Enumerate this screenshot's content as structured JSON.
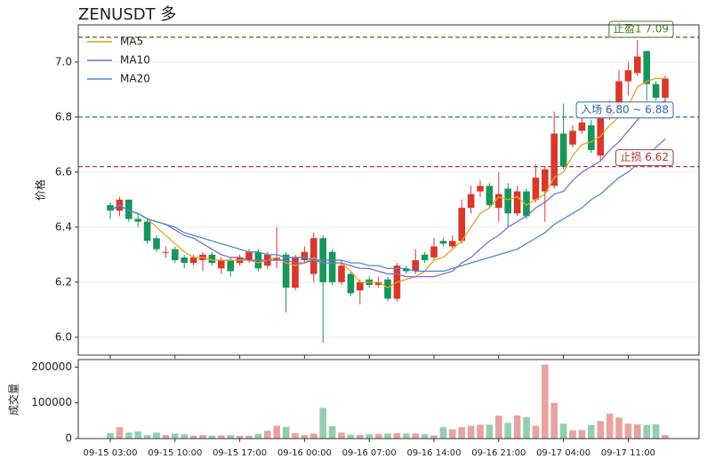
{
  "chart_data": [
    {
      "type": "candlestick",
      "title": "ZENUSDT  多",
      "ylabel": "价格",
      "categories": [
        "09-15 03:00",
        null,
        null,
        null,
        null,
        null,
        null,
        "09-15 10:00",
        null,
        null,
        null,
        null,
        null,
        null,
        "09-15 17:00",
        null,
        null,
        null,
        null,
        null,
        null,
        "09-16 00:00",
        null,
        null,
        null,
        null,
        null,
        null,
        "09-16 07:00",
        null,
        null,
        null,
        null,
        null,
        null,
        "09-16 14:00",
        null,
        null,
        null,
        null,
        null,
        null,
        "09-16 21:00",
        null,
        null,
        null,
        null,
        null,
        null,
        "09-17 04:00",
        null,
        null,
        null,
        null,
        null,
        null,
        "09-17 11:00",
        null,
        null,
        null,
        null
      ],
      "open": [
        6.48,
        6.46,
        6.5,
        6.43,
        6.42,
        6.36,
        6.31,
        6.32,
        6.29,
        6.27,
        6.28,
        6.3,
        6.25,
        6.28,
        6.27,
        6.28,
        6.31,
        6.26,
        6.28,
        6.3,
        6.18,
        6.28,
        6.23,
        6.36,
        6.31,
        6.2,
        6.23,
        6.17,
        6.21,
        6.19,
        6.21,
        6.14,
        6.25,
        6.24,
        6.3,
        6.29,
        6.35,
        6.33,
        6.35,
        6.47,
        6.53,
        6.55,
        6.47,
        6.54,
        6.45,
        6.53,
        6.5,
        6.53,
        6.55,
        6.74,
        6.7,
        6.75,
        6.77,
        6.66,
        6.8,
        6.83,
        6.93,
        6.96,
        7.04,
        6.92,
        6.87
      ],
      "high": [
        6.49,
        6.51,
        6.5,
        6.45,
        6.43,
        6.37,
        6.33,
        6.33,
        6.3,
        6.3,
        6.31,
        6.31,
        6.29,
        6.29,
        6.3,
        6.32,
        6.32,
        6.31,
        6.4,
        6.31,
        6.3,
        6.33,
        6.38,
        6.37,
        6.32,
        6.28,
        6.24,
        6.21,
        6.22,
        6.22,
        6.22,
        6.27,
        6.26,
        6.32,
        6.31,
        6.36,
        6.36,
        6.37,
        6.5,
        6.55,
        6.57,
        6.56,
        6.6,
        6.56,
        6.55,
        6.54,
        6.63,
        6.62,
        6.82,
        6.85,
        6.77,
        6.8,
        6.79,
        6.85,
        6.86,
        6.97,
        7.0,
        7.08,
        7.04,
        6.93,
        6.95
      ],
      "low": [
        6.43,
        6.44,
        6.42,
        6.4,
        6.34,
        6.31,
        6.29,
        6.27,
        6.25,
        6.26,
        6.24,
        6.26,
        6.23,
        6.22,
        6.26,
        6.27,
        6.24,
        6.25,
        6.25,
        6.09,
        6.17,
        6.27,
        6.2,
        5.98,
        6.19,
        6.19,
        6.15,
        6.12,
        6.18,
        6.18,
        6.13,
        6.13,
        6.23,
        6.23,
        6.27,
        6.28,
        6.33,
        6.32,
        6.34,
        6.45,
        6.51,
        6.47,
        6.42,
        6.4,
        6.44,
        6.43,
        6.49,
        6.42,
        6.54,
        6.61,
        6.69,
        6.74,
        6.67,
        6.64,
        6.79,
        6.82,
        6.88,
        6.95,
        6.86,
        6.86,
        6.85
      ],
      "close": [
        6.46,
        6.5,
        6.43,
        6.42,
        6.35,
        6.32,
        6.31,
        6.28,
        6.27,
        6.29,
        6.3,
        6.27,
        6.28,
        6.24,
        6.29,
        6.31,
        6.25,
        6.3,
        6.29,
        6.18,
        6.29,
        6.31,
        6.36,
        6.2,
        6.2,
        6.26,
        6.16,
        6.2,
        6.19,
        6.2,
        6.14,
        6.26,
        6.24,
        6.28,
        6.28,
        6.33,
        6.34,
        6.35,
        6.47,
        6.52,
        6.55,
        6.48,
        6.52,
        6.45,
        6.53,
        6.44,
        6.58,
        6.61,
        6.74,
        6.62,
        6.75,
        6.78,
        6.68,
        6.8,
        6.83,
        6.93,
        6.97,
        7.02,
        6.92,
        6.87,
        6.94
      ],
      "up_color": "#d8372a",
      "down_color": "#17955a",
      "series": [
        {
          "name": "MA5",
          "color": "#e3a417",
          "values": [
            6.46,
            6.48,
            6.46,
            6.45,
            6.43,
            6.4,
            6.37,
            6.34,
            6.31,
            6.29,
            6.29,
            6.28,
            6.28,
            6.28,
            6.28,
            6.28,
            6.27,
            6.28,
            6.29,
            6.27,
            6.26,
            6.27,
            6.29,
            6.27,
            6.27,
            6.27,
            6.24,
            6.2,
            6.2,
            6.2,
            6.18,
            6.2,
            6.21,
            6.22,
            6.24,
            6.28,
            6.29,
            6.32,
            6.35,
            6.4,
            6.45,
            6.47,
            6.51,
            6.5,
            6.51,
            6.48,
            6.5,
            6.52,
            6.58,
            6.6,
            6.66,
            6.7,
            6.71,
            6.73,
            6.77,
            6.8,
            6.84,
            6.91,
            6.93,
            6.94,
            6.94
          ]
        },
        {
          "name": "MA10",
          "color": "#8a68cc",
          "values": [
            6.46,
            6.48,
            6.46,
            6.45,
            6.43,
            6.42,
            6.41,
            6.39,
            6.37,
            6.36,
            6.34,
            6.32,
            6.3,
            6.29,
            6.29,
            6.28,
            6.28,
            6.28,
            6.28,
            6.28,
            6.27,
            6.27,
            6.28,
            6.27,
            6.27,
            6.27,
            6.26,
            6.25,
            6.25,
            6.24,
            6.23,
            6.23,
            6.22,
            6.22,
            6.22,
            6.22,
            6.23,
            6.24,
            6.27,
            6.29,
            6.32,
            6.35,
            6.37,
            6.4,
            6.42,
            6.44,
            6.47,
            6.49,
            6.52,
            6.53,
            6.57,
            6.6,
            6.62,
            6.64,
            6.68,
            6.71,
            6.75,
            6.79,
            6.82,
            6.84,
            6.86
          ]
        },
        {
          "name": "MA20",
          "color": "#4a8ad2",
          "values": [
            6.46,
            6.48,
            6.46,
            6.45,
            6.43,
            6.42,
            6.41,
            6.4,
            6.38,
            6.37,
            6.36,
            6.35,
            6.34,
            6.33,
            6.32,
            6.31,
            6.31,
            6.3,
            6.3,
            6.29,
            6.29,
            6.29,
            6.28,
            6.28,
            6.28,
            6.28,
            6.27,
            6.27,
            6.26,
            6.26,
            6.25,
            6.25,
            6.25,
            6.24,
            6.24,
            6.24,
            6.24,
            6.25,
            6.26,
            6.27,
            6.28,
            6.29,
            6.3,
            6.31,
            6.32,
            6.34,
            6.36,
            6.38,
            6.41,
            6.43,
            6.45,
            6.47,
            6.5,
            6.52,
            6.55,
            6.58,
            6.6,
            6.63,
            6.66,
            6.69,
            6.72
          ]
        }
      ],
      "hlines": [
        {
          "label": "止盈1 7.09",
          "value": 7.09,
          "color": "#4c7d28"
        },
        {
          "label": "入场 6.80 ~ 6.88",
          "value": 6.8,
          "color": "#2d6bb0"
        },
        {
          "label": "止损 6.62",
          "value": 6.62,
          "color": "#a83a3a"
        }
      ],
      "ylim": [
        5.935,
        7.135
      ],
      "yticks": [
        {
          "value": 6,
          "label": "6.0"
        },
        6.2,
        6.4,
        6.6,
        6.8,
        {
          "value": 7,
          "label": "7.0"
        }
      ],
      "grid": true,
      "legend": "upper-left"
    },
    {
      "type": "bar",
      "ylabel": "成交量",
      "values": [
        15000,
        32000,
        17000,
        20000,
        10000,
        17000,
        10000,
        14000,
        12000,
        8000,
        10000,
        8000,
        9000,
        10000,
        8000,
        8000,
        13000,
        22000,
        36000,
        33000,
        15000,
        10000,
        14000,
        86000,
        35000,
        17000,
        11000,
        10000,
        12000,
        13000,
        14000,
        15000,
        14000,
        14000,
        12000,
        9000,
        32000,
        26000,
        32000,
        36000,
        39000,
        39000,
        64000,
        44000,
        65000,
        60000,
        36000,
        207000,
        100000,
        42000,
        23000,
        24000,
        38000,
        49000,
        70000,
        59000,
        42000,
        40000,
        38000,
        40000,
        10000
      ],
      "up_color": "#e8a39f",
      "down_color": "#93cfae",
      "ylim": [
        0,
        221000
      ],
      "yticks": [
        0,
        100000,
        200000
      ]
    }
  ]
}
